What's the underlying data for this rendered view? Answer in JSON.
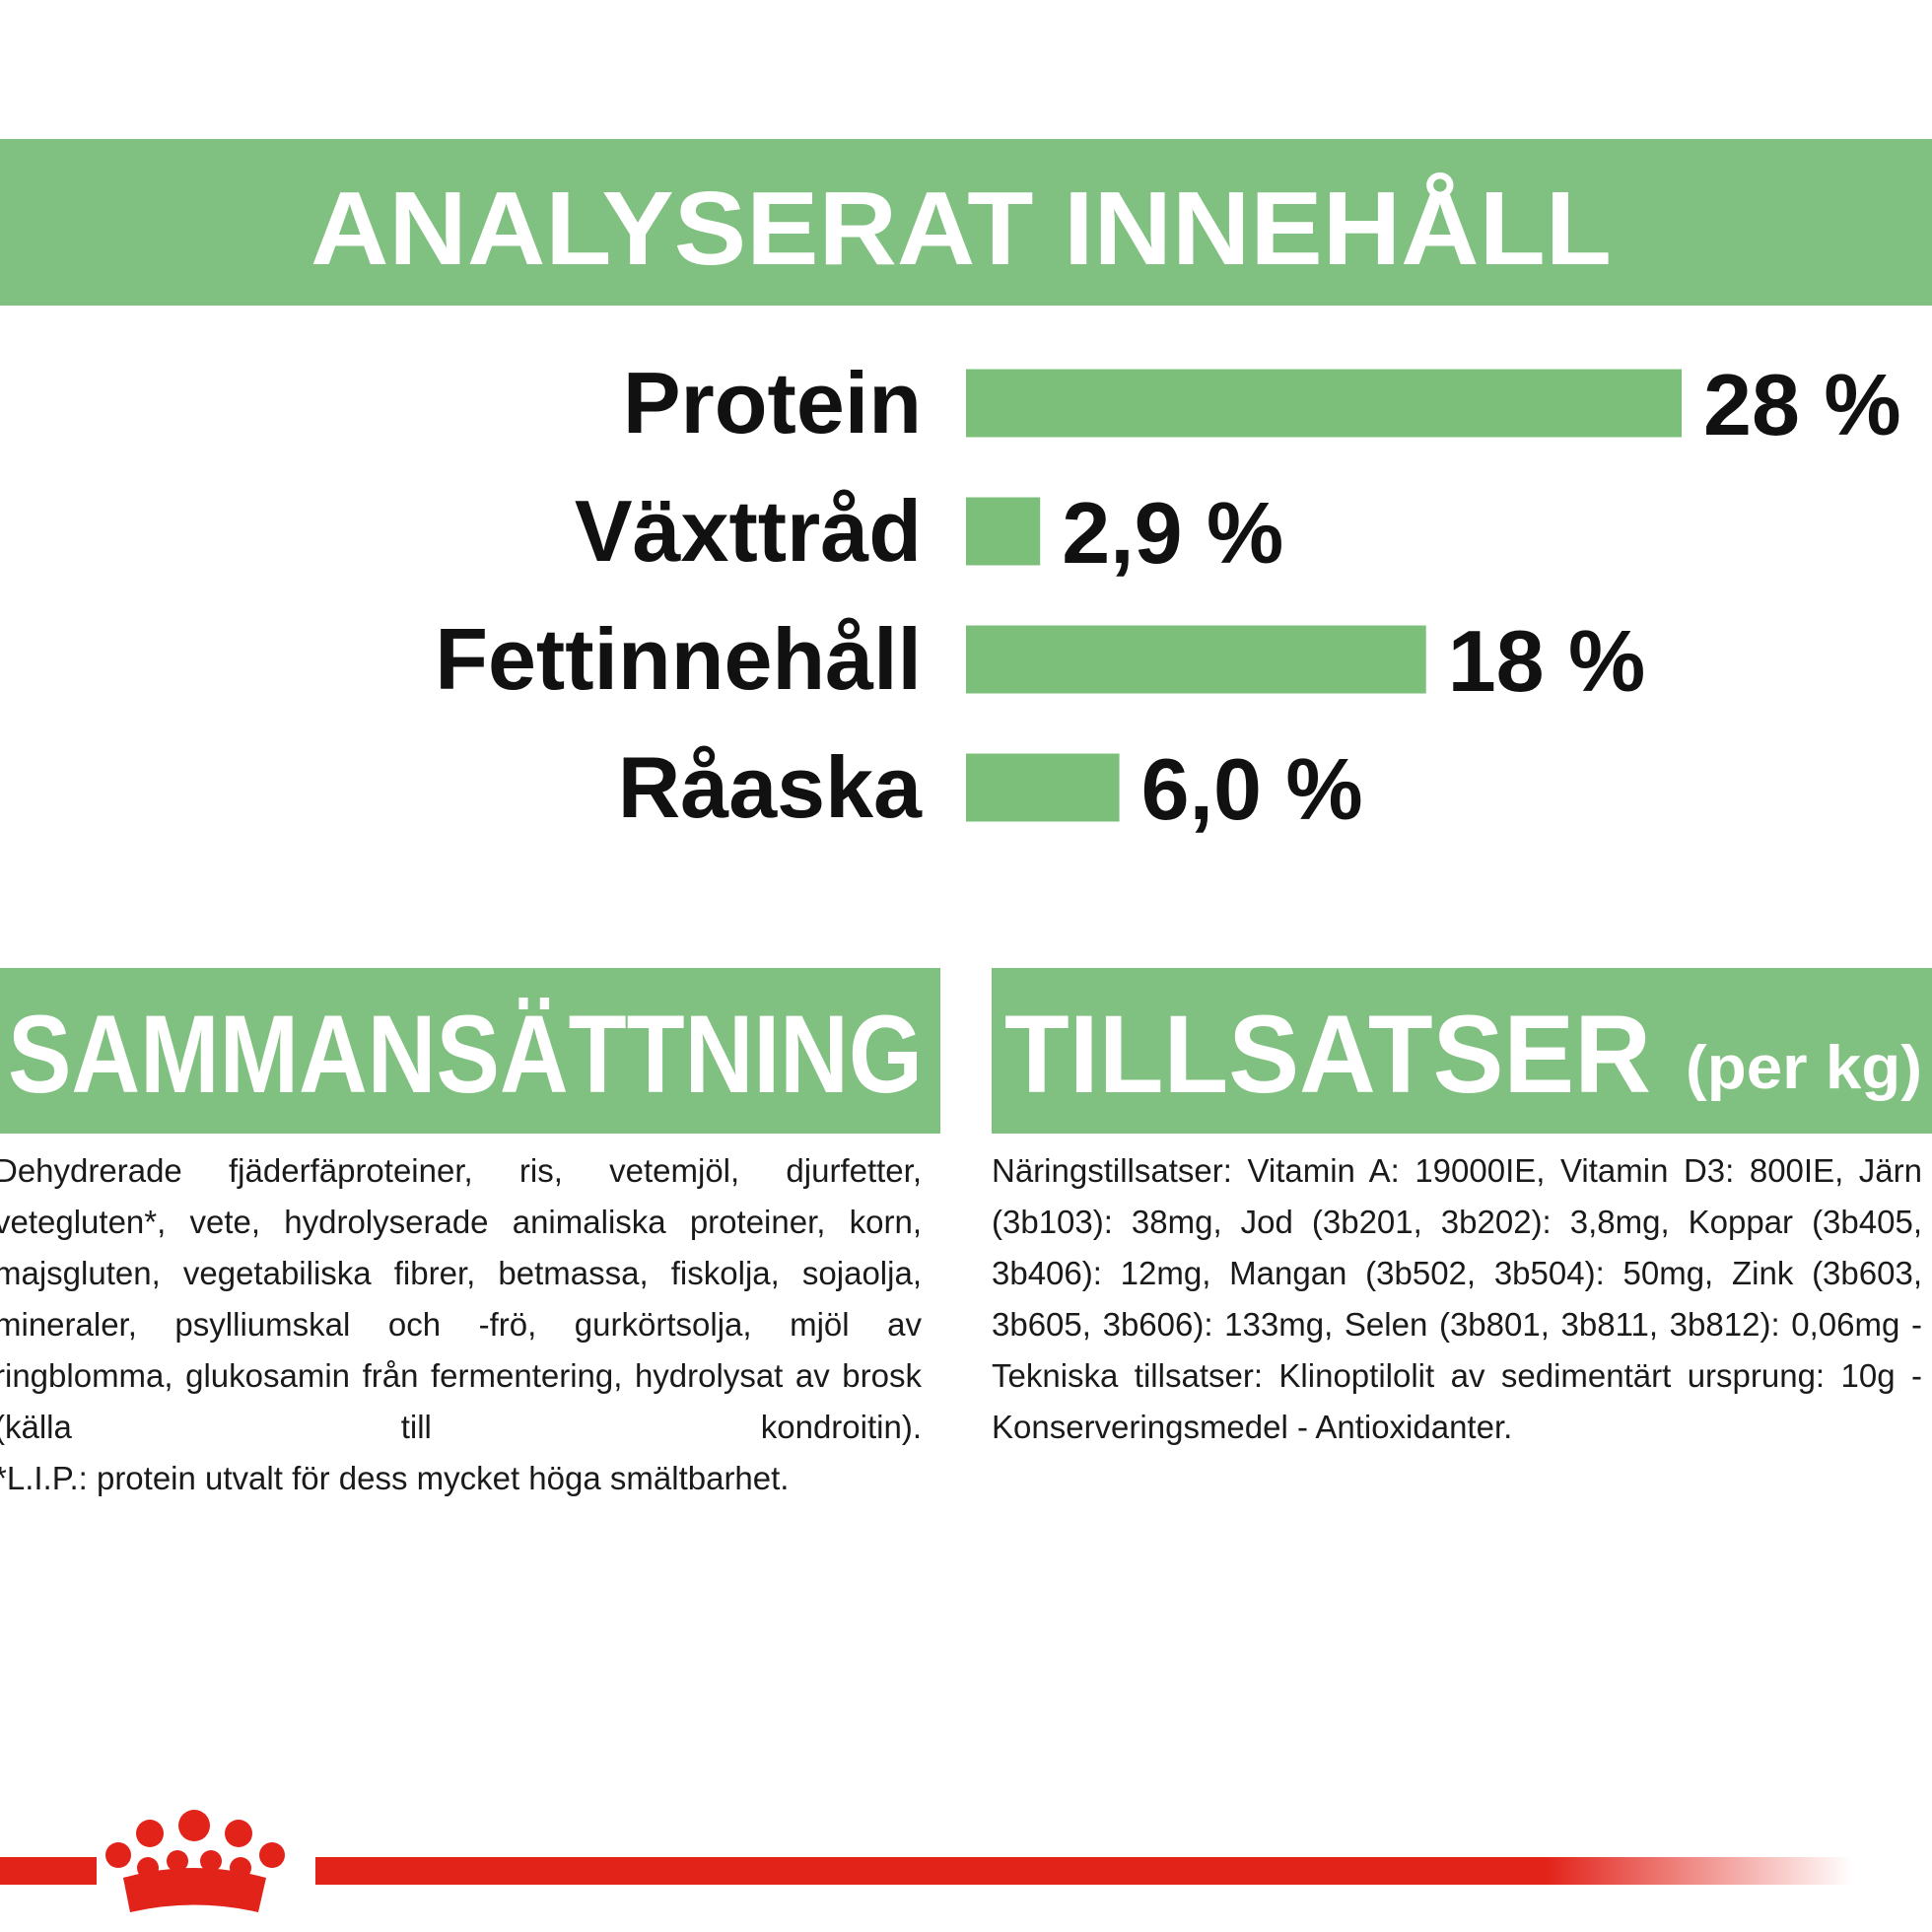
{
  "chart_data": {
    "type": "bar",
    "title": "ANALYSERAT INNEHÅLL",
    "categories": [
      "Protein",
      "Växttråd",
      "Fettinnehåll",
      "Råaska"
    ],
    "values": [
      28,
      2.9,
      18,
      6.0
    ],
    "value_labels": [
      "28 %",
      "2,9 %",
      "18 %",
      "6,0 %"
    ],
    "color": "#7cbf7b"
  },
  "sections": [
    {
      "title": "SAMMANSÄTTNING",
      "paragraphs": [
        "Dehydrerade fjäderfäproteiner, ris, vetemjöl, djurfetter, vetegluten*, vete, hydrolyserade animaliska proteiner, korn, majsgluten, vegetabiliska fibrer, betmassa, fiskolja, sojaolja, mineraler, psylliumskal och -frö, gurkörtsolja, mjöl av ringblomma, glukosamin från fermentering, hydrolysat av brosk (källa till kondroitin).",
        "*L.I.P.: protein utvalt för dess mycket höga smältbarhet."
      ]
    },
    {
      "title": "TILLSATSER",
      "subtitle": "(per kg)",
      "paragraphs": [
        "Näringstillsatser: Vitamin A: 19000IE, Vitamin D3: 800IE, Järn (3b103): 38mg, Jod (3b201, 3b202): 3,8mg, Koppar (3b405, 3b406): 12mg, Mangan (3b502, 3b504): 50mg, Zink (3b603, 3b605, 3b606): 133mg, Selen (3b801, 3b811, 3b812): 0,06mg - Tekniska tillsatser: Klinoptilolit av sedimentärt ursprung: 10g - Konserveringsmedel - Antioxidanter."
      ]
    }
  ]
}
